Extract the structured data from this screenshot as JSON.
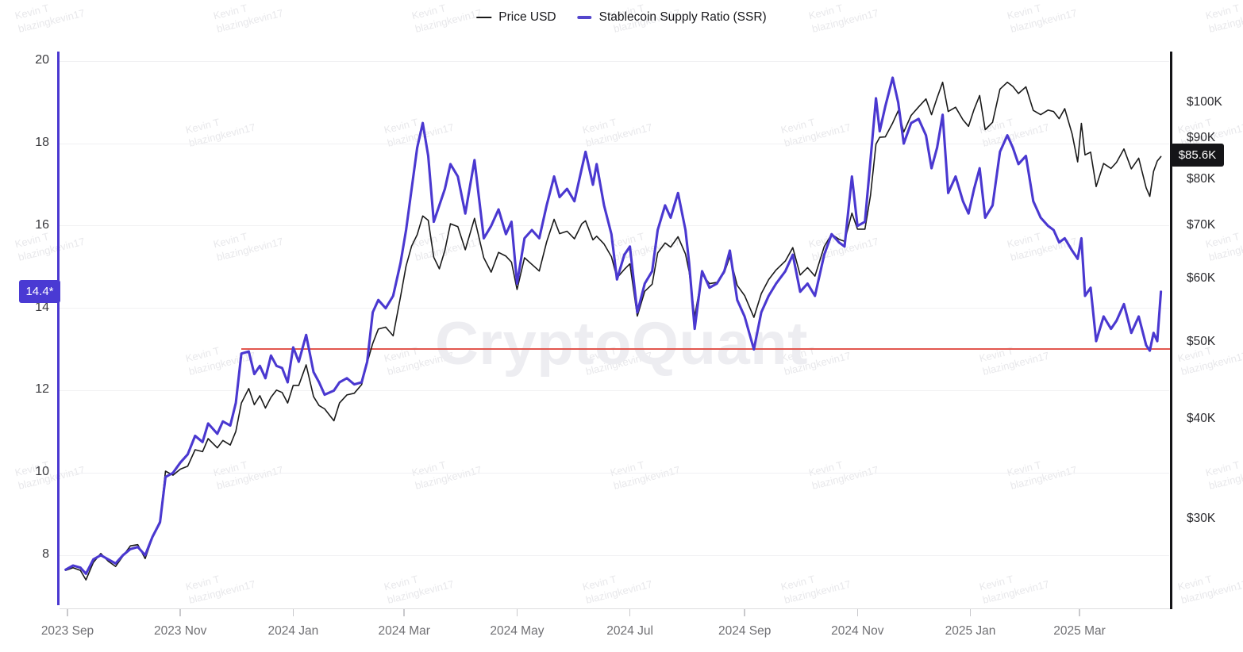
{
  "legend": {
    "items": [
      {
        "label": "Price USD",
        "color": "#1A1A1A"
      },
      {
        "label": "Stablecoin Supply Ratio (SSR)",
        "color": "#4A38D0"
      }
    ]
  },
  "left_axis": {
    "scale": "ssr",
    "ticks": [
      20,
      18,
      16,
      14,
      12,
      10,
      8
    ],
    "current_value_label": "14.4*",
    "accent_color": "#4A38D0"
  },
  "right_axis": {
    "scale": "price_usd",
    "ticks": [
      {
        "label": "$100K",
        "value": 100
      },
      {
        "label": "$90K",
        "value": 90
      },
      {
        "label": "$80K",
        "value": 80
      },
      {
        "label": "$70K",
        "value": 70
      },
      {
        "label": "$60K",
        "value": 60
      },
      {
        "label": "$50K",
        "value": 50
      },
      {
        "label": "$40K",
        "value": 40
      },
      {
        "label": "$30K",
        "value": 30
      }
    ],
    "current_value_label": "$85.6K"
  },
  "x_axis": {
    "ticks": [
      {
        "label": "2023 Sep",
        "date": "2023-09-01"
      },
      {
        "label": "2023 Nov",
        "date": "2023-11-01"
      },
      {
        "label": "2024 Jan",
        "date": "2024-01-01"
      },
      {
        "label": "2024 Mar",
        "date": "2024-03-01"
      },
      {
        "label": "2024 May",
        "date": "2024-05-01"
      },
      {
        "label": "2024 Jul",
        "date": "2024-07-01"
      },
      {
        "label": "2024 Sep",
        "date": "2024-09-01"
      },
      {
        "label": "2024 Nov",
        "date": "2024-11-01"
      },
      {
        "label": "2025 Jan",
        "date": "2025-01-01"
      },
      {
        "label": "2025 Mar",
        "date": "2025-03-01"
      }
    ]
  },
  "watermarks": {
    "brand": "CryptoQuant",
    "user_line1": "Kevin T",
    "user_line2": "blazingkevin17"
  },
  "chart_data": {
    "type": "line",
    "title": "",
    "legend_position": "top-center",
    "grid": "horizontal-only",
    "y_left": {
      "label": "Stablecoin Supply Ratio (SSR)",
      "scale": "linear",
      "range": [
        7.0,
        20.2
      ],
      "ticks": [
        8,
        10,
        12,
        14,
        16,
        18,
        20
      ]
    },
    "y_right": {
      "label": "Price USD",
      "scale": "log",
      "range_thousands": [
        24,
        115
      ],
      "ticks_thousands": [
        30,
        40,
        50,
        60,
        70,
        80,
        90,
        100
      ]
    },
    "reference_line": {
      "axis": "left",
      "ssr_value": 13.0,
      "color": "#E2574E",
      "start_date": "2023-12-04"
    },
    "latest": {
      "price_label": "$85.6K",
      "ssr_label": "14.4*"
    },
    "series": [
      {
        "name": "Price USD",
        "axis": "right",
        "color": "#1A1A1A",
        "column": 1
      },
      {
        "name": "Stablecoin Supply Ratio (SSR)",
        "axis": "left",
        "color": "#4A38D0",
        "column": 2
      }
    ],
    "columns": [
      "date",
      "price_usd_thousands",
      "ssr"
    ],
    "points": [
      [
        "2023-08-31",
        25.9,
        7.65
      ],
      [
        "2023-09-04",
        26.1,
        7.75
      ],
      [
        "2023-09-08",
        25.9,
        7.7
      ],
      [
        "2023-09-11",
        25.2,
        7.55
      ],
      [
        "2023-09-15",
        26.5,
        7.9
      ],
      [
        "2023-09-19",
        27.2,
        8.0
      ],
      [
        "2023-09-23",
        26.6,
        7.9
      ],
      [
        "2023-09-27",
        26.2,
        7.8
      ],
      [
        "2023-10-01",
        27.0,
        8.0
      ],
      [
        "2023-10-05",
        27.8,
        8.15
      ],
      [
        "2023-10-09",
        27.9,
        8.2
      ],
      [
        "2023-10-13",
        26.8,
        8.0
      ],
      [
        "2023-10-17",
        28.5,
        8.45
      ],
      [
        "2023-10-21",
        29.9,
        8.8
      ],
      [
        "2023-10-24",
        34.5,
        9.9
      ],
      [
        "2023-10-28",
        34.1,
        10.0
      ],
      [
        "2023-11-01",
        34.7,
        10.25
      ],
      [
        "2023-11-05",
        35.0,
        10.45
      ],
      [
        "2023-11-09",
        36.7,
        10.9
      ],
      [
        "2023-11-13",
        36.5,
        10.75
      ],
      [
        "2023-11-16",
        37.9,
        11.2
      ],
      [
        "2023-11-21",
        36.9,
        10.95
      ],
      [
        "2023-11-24",
        37.7,
        11.25
      ],
      [
        "2023-11-28",
        37.2,
        11.15
      ],
      [
        "2023-12-01",
        38.7,
        11.7
      ],
      [
        "2023-12-04",
        42.0,
        12.9
      ],
      [
        "2023-12-08",
        43.8,
        12.95
      ],
      [
        "2023-12-11",
        41.8,
        12.4
      ],
      [
        "2023-12-14",
        42.9,
        12.6
      ],
      [
        "2023-12-17",
        41.4,
        12.3
      ],
      [
        "2023-12-20",
        42.7,
        12.85
      ],
      [
        "2023-12-23",
        43.6,
        12.6
      ],
      [
        "2023-12-26",
        43.3,
        12.55
      ],
      [
        "2023-12-29",
        42.0,
        12.2
      ],
      [
        "2024-01-01",
        44.2,
        13.05
      ],
      [
        "2024-01-04",
        44.2,
        12.7
      ],
      [
        "2024-01-08",
        46.9,
        13.35
      ],
      [
        "2024-01-12",
        42.8,
        12.45
      ],
      [
        "2024-01-15",
        41.7,
        12.2
      ],
      [
        "2024-01-18",
        41.3,
        11.9
      ],
      [
        "2024-01-23",
        39.9,
        12.0
      ],
      [
        "2024-01-26",
        42.0,
        12.2
      ],
      [
        "2024-01-30",
        43.0,
        12.3
      ],
      [
        "2024-02-03",
        43.2,
        12.15
      ],
      [
        "2024-02-07",
        44.3,
        12.2
      ],
      [
        "2024-02-10",
        47.2,
        12.7
      ],
      [
        "2024-02-13",
        49.9,
        13.9
      ],
      [
        "2024-02-16",
        52.0,
        14.2
      ],
      [
        "2024-02-20",
        52.3,
        14.0
      ],
      [
        "2024-02-24",
        51.0,
        14.3
      ],
      [
        "2024-02-28",
        57.1,
        15.1
      ],
      [
        "2024-03-02",
        62.4,
        15.9
      ],
      [
        "2024-03-05",
        66.1,
        16.9
      ],
      [
        "2024-03-08",
        68.3,
        17.9
      ],
      [
        "2024-03-11",
        72.1,
        18.5
      ],
      [
        "2024-03-14",
        71.2,
        17.7
      ],
      [
        "2024-03-17",
        64.0,
        16.1
      ],
      [
        "2024-03-20",
        61.9,
        16.5
      ],
      [
        "2024-03-23",
        65.3,
        16.9
      ],
      [
        "2024-03-26",
        70.5,
        17.5
      ],
      [
        "2024-03-30",
        69.9,
        17.2
      ],
      [
        "2024-04-03",
        65.4,
        16.3
      ],
      [
        "2024-04-08",
        71.6,
        17.6
      ],
      [
        "2024-04-13",
        63.9,
        15.7
      ],
      [
        "2024-04-17",
        61.3,
        16.0
      ],
      [
        "2024-04-21",
        64.9,
        16.4
      ],
      [
        "2024-04-25",
        64.2,
        15.8
      ],
      [
        "2024-04-28",
        63.1,
        16.1
      ],
      [
        "2024-05-01",
        58.3,
        14.6
      ],
      [
        "2024-05-05",
        63.9,
        15.7
      ],
      [
        "2024-05-09",
        62.7,
        15.9
      ],
      [
        "2024-05-13",
        61.5,
        15.7
      ],
      [
        "2024-05-17",
        66.9,
        16.5
      ],
      [
        "2024-05-21",
        71.4,
        17.2
      ],
      [
        "2024-05-24",
        68.5,
        16.7
      ],
      [
        "2024-05-28",
        69.0,
        16.9
      ],
      [
        "2024-06-01",
        67.5,
        16.6
      ],
      [
        "2024-06-05",
        70.5,
        17.4
      ],
      [
        "2024-06-07",
        71.1,
        17.8
      ],
      [
        "2024-06-11",
        67.3,
        17.0
      ],
      [
        "2024-06-13",
        68.0,
        17.5
      ],
      [
        "2024-06-17",
        66.5,
        16.5
      ],
      [
        "2024-06-21",
        64.1,
        15.8
      ],
      [
        "2024-06-24",
        60.3,
        14.7
      ],
      [
        "2024-06-28",
        61.8,
        15.3
      ],
      [
        "2024-07-01",
        62.8,
        15.5
      ],
      [
        "2024-07-05",
        54.0,
        13.9
      ],
      [
        "2024-07-09",
        58.0,
        14.6
      ],
      [
        "2024-07-13",
        59.2,
        14.9
      ],
      [
        "2024-07-16",
        64.8,
        15.9
      ],
      [
        "2024-07-20",
        66.7,
        16.5
      ],
      [
        "2024-07-23",
        65.9,
        16.2
      ],
      [
        "2024-07-27",
        67.9,
        16.8
      ],
      [
        "2024-07-31",
        64.6,
        15.9
      ],
      [
        "2024-08-02",
        61.4,
        15.1
      ],
      [
        "2024-08-05",
        53.9,
        13.5
      ],
      [
        "2024-08-09",
        60.9,
        14.9
      ],
      [
        "2024-08-13",
        59.3,
        14.5
      ],
      [
        "2024-08-17",
        59.5,
        14.6
      ],
      [
        "2024-08-21",
        61.2,
        14.9
      ],
      [
        "2024-08-24",
        64.1,
        15.4
      ],
      [
        "2024-08-28",
        59.0,
        14.2
      ],
      [
        "2024-09-01",
        57.3,
        13.8
      ],
      [
        "2024-09-06",
        53.8,
        13.0
      ],
      [
        "2024-09-10",
        57.6,
        13.9
      ],
      [
        "2024-09-14",
        60.0,
        14.3
      ],
      [
        "2024-09-18",
        61.7,
        14.6
      ],
      [
        "2024-09-23",
        63.3,
        14.9
      ],
      [
        "2024-09-27",
        65.8,
        15.3
      ],
      [
        "2024-10-01",
        60.8,
        14.4
      ],
      [
        "2024-10-05",
        62.1,
        14.6
      ],
      [
        "2024-10-09",
        60.6,
        14.3
      ],
      [
        "2024-10-14",
        66.0,
        15.3
      ],
      [
        "2024-10-18",
        68.4,
        15.8
      ],
      [
        "2024-10-22",
        67.4,
        15.6
      ],
      [
        "2024-10-25",
        67.0,
        15.5
      ],
      [
        "2024-10-29",
        72.7,
        17.2
      ],
      [
        "2024-11-01",
        69.4,
        16.0
      ],
      [
        "2024-11-05",
        69.4,
        16.1
      ],
      [
        "2024-11-08",
        76.5,
        17.6
      ],
      [
        "2024-11-11",
        88.7,
        19.1
      ],
      [
        "2024-11-13",
        90.5,
        18.3
      ],
      [
        "2024-11-16",
        90.6,
        18.9
      ],
      [
        "2024-11-20",
        94.3,
        19.6
      ],
      [
        "2024-11-23",
        97.7,
        19.0
      ],
      [
        "2024-11-26",
        91.9,
        18.0
      ],
      [
        "2024-11-30",
        96.4,
        18.5
      ],
      [
        "2024-12-04",
        98.8,
        18.6
      ],
      [
        "2024-12-08",
        101.1,
        18.2
      ],
      [
        "2024-12-11",
        96.6,
        17.4
      ],
      [
        "2024-12-14",
        101.4,
        17.9
      ],
      [
        "2024-12-17",
        106.1,
        18.7
      ],
      [
        "2024-12-20",
        97.5,
        16.8
      ],
      [
        "2024-12-24",
        98.7,
        17.2
      ],
      [
        "2024-12-28",
        95.2,
        16.6
      ],
      [
        "2024-12-31",
        93.4,
        16.3
      ],
      [
        "2025-01-03",
        98.1,
        16.9
      ],
      [
        "2025-01-06",
        102.1,
        17.4
      ],
      [
        "2025-01-09",
        92.5,
        16.2
      ],
      [
        "2025-01-13",
        94.5,
        16.5
      ],
      [
        "2025-01-17",
        104.0,
        17.8
      ],
      [
        "2025-01-21",
        106.1,
        18.2
      ],
      [
        "2025-01-24",
        104.8,
        17.9
      ],
      [
        "2025-01-27",
        102.7,
        17.5
      ],
      [
        "2025-01-31",
        104.7,
        17.7
      ],
      [
        "2025-02-04",
        97.8,
        16.6
      ],
      [
        "2025-02-08",
        96.6,
        16.2
      ],
      [
        "2025-02-12",
        97.9,
        16.0
      ],
      [
        "2025-02-15",
        97.5,
        15.9
      ],
      [
        "2025-02-18",
        95.5,
        15.6
      ],
      [
        "2025-02-21",
        98.3,
        15.7
      ],
      [
        "2025-02-25",
        91.4,
        15.4
      ],
      [
        "2025-02-28",
        84.3,
        15.2
      ],
      [
        "2025-03-02",
        94.2,
        15.7
      ],
      [
        "2025-03-04",
        86.0,
        14.3
      ],
      [
        "2025-03-07",
        86.7,
        14.5
      ],
      [
        "2025-03-10",
        78.5,
        13.2
      ],
      [
        "2025-03-14",
        83.9,
        13.8
      ],
      [
        "2025-03-18",
        82.7,
        13.5
      ],
      [
        "2025-03-21",
        84.2,
        13.7
      ],
      [
        "2025-03-25",
        87.5,
        14.1
      ],
      [
        "2025-03-29",
        82.6,
        13.4
      ],
      [
        "2025-04-02",
        85.2,
        13.8
      ],
      [
        "2025-04-06",
        78.2,
        13.1
      ],
      [
        "2025-04-08",
        76.3,
        12.97
      ],
      [
        "2025-04-10",
        82.0,
        13.4
      ],
      [
        "2025-04-12",
        84.5,
        13.2
      ],
      [
        "2025-04-14",
        85.6,
        14.4
      ]
    ]
  }
}
